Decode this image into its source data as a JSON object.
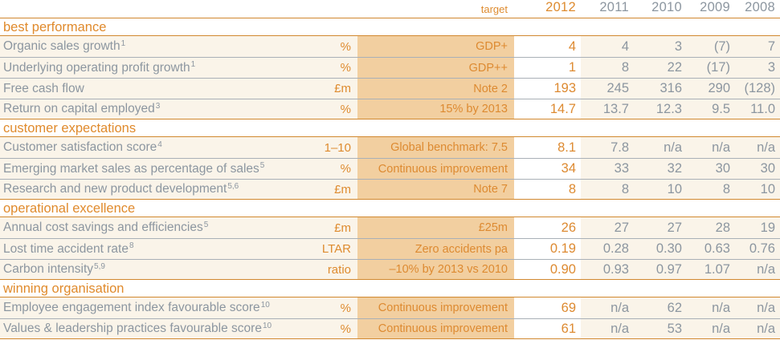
{
  "palette": {
    "accent_orange": "#de8b2f",
    "value_orange": "#dd8a31",
    "gray_text": "#8c96a0",
    "target_column_bg": "#f2cfa0",
    "row_bg": "#faf4e9",
    "orange_rule": "#d1882f",
    "gray_rule": "#a9b0b7"
  },
  "header": {
    "target_label": "target",
    "years": [
      "2012",
      "2011",
      "2010",
      "2009",
      "2008"
    ]
  },
  "sections": [
    {
      "title": "best performance",
      "rows": [
        {
          "label": "Organic sales growth",
          "sup": "1",
          "unit": "%",
          "target": "GDP+",
          "values": [
            "4",
            "4",
            "3",
            "(7)",
            "7"
          ]
        },
        {
          "label": "Underlying operating profit growth",
          "sup": "1",
          "unit": "%",
          "target": "GDP++",
          "values": [
            "1",
            "8",
            "22",
            "(17)",
            "3"
          ]
        },
        {
          "label": "Free cash flow",
          "sup": "",
          "unit": "£m",
          "target": "Note 2",
          "values": [
            "193",
            "245",
            "316",
            "290",
            "(128)"
          ]
        },
        {
          "label": "Return on capital employed",
          "sup": "3",
          "unit": "%",
          "target": "15% by 2013",
          "values": [
            "14.7",
            "13.7",
            "12.3",
            "9.5",
            "11.0"
          ]
        }
      ]
    },
    {
      "title": "customer expectations",
      "rows": [
        {
          "label": "Customer satisfaction score",
          "sup": "4",
          "unit": "1–10",
          "target": "Global benchmark: 7.5",
          "values": [
            "8.1",
            "7.8",
            "n/a",
            "n/a",
            "n/a"
          ]
        },
        {
          "label": "Emerging market sales as percentage of sales",
          "sup": "5",
          "unit": "%",
          "target": "Continuous improvement",
          "values": [
            "34",
            "33",
            "32",
            "30",
            "30"
          ]
        },
        {
          "label": "Research and new product development",
          "sup": "5,6",
          "unit": "£m",
          "target": "Note 7",
          "values": [
            "8",
            "8",
            "10",
            "8",
            "10"
          ]
        }
      ]
    },
    {
      "title": "operational excellence",
      "rows": [
        {
          "label": "Annual cost savings and efficiencies",
          "sup": "5",
          "unit": "£m",
          "target": "£25m",
          "values": [
            "26",
            "27",
            "27",
            "28",
            "19"
          ]
        },
        {
          "label": "Lost time accident rate",
          "sup": "8",
          "unit": "LTAR",
          "target": "Zero accidents pa",
          "values": [
            "0.19",
            "0.28",
            "0.30",
            "0.63",
            "0.76"
          ]
        },
        {
          "label": "Carbon intensity",
          "sup": "5,9",
          "unit": "ratio",
          "target": "–10% by 2013 vs 2010",
          "values": [
            "0.90",
            "0.93",
            "0.97",
            "1.07",
            "n/a"
          ]
        }
      ]
    },
    {
      "title": "winning organisation",
      "rows": [
        {
          "label": "Employee engagement index favourable score",
          "sup": "10",
          "unit": "%",
          "target": "Continuous improvement",
          "values": [
            "69",
            "n/a",
            "62",
            "n/a",
            "n/a"
          ]
        },
        {
          "label": "Values & leadership practices favourable score",
          "sup": "10",
          "unit": "%",
          "target": "Continuous improvement",
          "values": [
            "61",
            "n/a",
            "53",
            "n/a",
            "n/a"
          ]
        }
      ]
    }
  ]
}
